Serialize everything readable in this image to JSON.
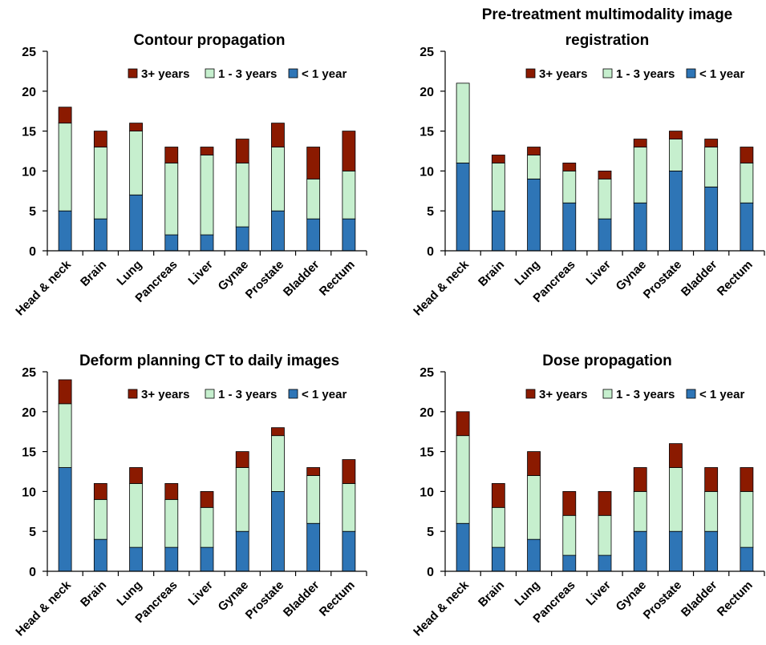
{
  "chart_data": [
    {
      "type": "bar",
      "stacked": true,
      "title": "Contour propagation",
      "categories": [
        "Head & neck",
        "Brain",
        "Lung",
        "Pancreas",
        "Liver",
        "Gynae",
        "Prostate",
        "Bladder",
        "Rectum"
      ],
      "ylim": [
        0,
        25
      ],
      "yticks": [
        0,
        5,
        10,
        15,
        20,
        25
      ],
      "legend_position": "top-right",
      "series": [
        {
          "name": "< 1 year",
          "color": "#2e75b6",
          "values": [
            5,
            4,
            7,
            2,
            2,
            3,
            5,
            4,
            4
          ]
        },
        {
          "name": "1 - 3 years",
          "color": "#c6efce",
          "values": [
            11,
            9,
            8,
            9,
            10,
            8,
            8,
            5,
            6
          ]
        },
        {
          "name": "3+ years",
          "color": "#8b1a00",
          "values": [
            2,
            2,
            1,
            2,
            1,
            3,
            3,
            4,
            5
          ]
        }
      ]
    },
    {
      "type": "bar",
      "stacked": true,
      "title": "Pre-treatment multimodality image registration",
      "categories": [
        "Head & neck",
        "Brain",
        "Lung",
        "Pancreas",
        "Liver",
        "Gynae",
        "Prostate",
        "Bladder",
        "Rectum"
      ],
      "ylim": [
        0,
        25
      ],
      "yticks": [
        0,
        5,
        10,
        15,
        20,
        25
      ],
      "legend_position": "top-right",
      "series": [
        {
          "name": "< 1 year",
          "color": "#2e75b6",
          "values": [
            11,
            5,
            9,
            6,
            4,
            6,
            10,
            8,
            6
          ]
        },
        {
          "name": "1 - 3 years",
          "color": "#c6efce",
          "values": [
            10,
            6,
            3,
            4,
            5,
            7,
            4,
            5,
            5
          ]
        },
        {
          "name": "3+ years",
          "color": "#8b1a00",
          "values": [
            0,
            1,
            1,
            1,
            1,
            1,
            1,
            1,
            2
          ]
        }
      ]
    },
    {
      "type": "bar",
      "stacked": true,
      "title": "Deform planning CT to daily images",
      "categories": [
        "Head & neck",
        "Brain",
        "Lung",
        "Pancreas",
        "Liver",
        "Gynae",
        "Prostate",
        "Bladder",
        "Rectum"
      ],
      "ylim": [
        0,
        25
      ],
      "yticks": [
        0,
        5,
        10,
        15,
        20,
        25
      ],
      "legend_position": "top-right",
      "series": [
        {
          "name": "< 1 year",
          "color": "#2e75b6",
          "values": [
            13,
            4,
            3,
            3,
            3,
            5,
            10,
            6,
            5
          ]
        },
        {
          "name": "1 - 3 years",
          "color": "#c6efce",
          "values": [
            8,
            5,
            8,
            6,
            5,
            8,
            7,
            6,
            6
          ]
        },
        {
          "name": "3+ years",
          "color": "#8b1a00",
          "values": [
            3,
            2,
            2,
            2,
            2,
            2,
            1,
            1,
            3
          ]
        }
      ]
    },
    {
      "type": "bar",
      "stacked": true,
      "title": "Dose propagation",
      "categories": [
        "Head & neck",
        "Brain",
        "Lung",
        "Pancreas",
        "Liver",
        "Gynae",
        "Prostate",
        "Bladder",
        "Rectum"
      ],
      "ylim": [
        0,
        25
      ],
      "yticks": [
        0,
        5,
        10,
        15,
        20,
        25
      ],
      "legend_position": "top-right",
      "series": [
        {
          "name": "< 1 year",
          "color": "#2e75b6",
          "values": [
            6,
            3,
            4,
            2,
            2,
            5,
            5,
            5,
            3
          ]
        },
        {
          "name": "1 - 3 years",
          "color": "#c6efce",
          "values": [
            11,
            5,
            8,
            5,
            5,
            5,
            8,
            5,
            7
          ]
        },
        {
          "name": "3+ years",
          "color": "#8b1a00",
          "values": [
            3,
            3,
            3,
            3,
            3,
            3,
            3,
            3,
            3
          ]
        }
      ]
    }
  ]
}
